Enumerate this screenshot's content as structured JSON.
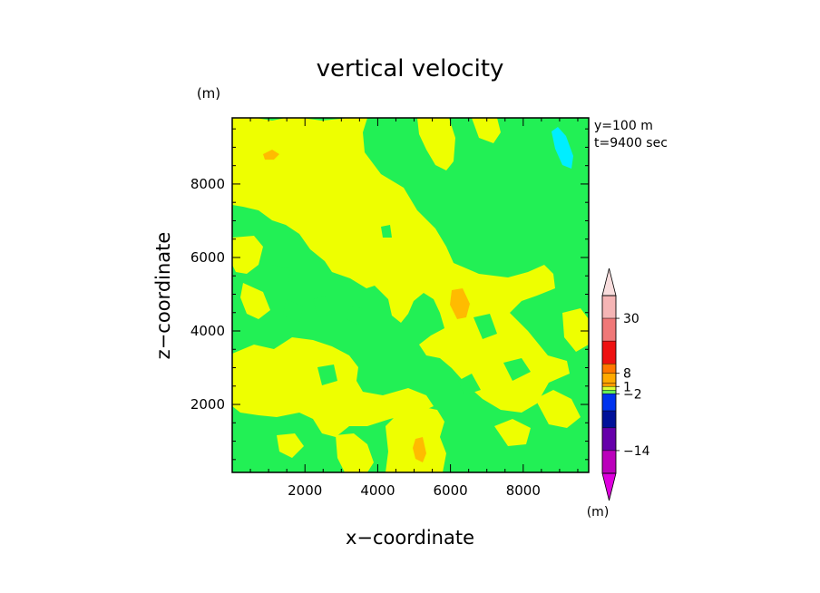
{
  "chart_data": {
    "type": "heatmap",
    "title": "vertical velocity",
    "xlabel": "x−coordinate",
    "ylabel": "z−coordinate",
    "x_unit": "(m)",
    "y_unit": "(m)",
    "annotation_lines": [
      "y=100  m",
      "t=9400  sec"
    ],
    "xlim": [
      0,
      9800
    ],
    "ylim": [
      150,
      9800
    ],
    "xticks": [
      2000,
      4000,
      6000,
      8000
    ],
    "xtick_labels": [
      "2000",
      "4000",
      "6000",
      "8000"
    ],
    "yticks": [
      2000,
      4000,
      6000,
      8000
    ],
    "ytick_labels": [
      "2000",
      "4000",
      "6000",
      "8000"
    ],
    "colorbar": {
      "unit": "(m)",
      "tick_labels": [
        {
          "label": "30",
          "band": 1
        },
        {
          "label": "8",
          "band": 4
        },
        {
          "label": "1",
          "band": 6
        },
        {
          "label": "−2",
          "band": 8
        },
        {
          "label": "−14",
          "band": 11
        }
      ],
      "band_colors": [
        "#f5b5b5",
        "#f07878",
        "#ee1111",
        "#ff7700",
        "#ffaa00",
        "#ff9900",
        "#ddff33",
        "#66ee55",
        "#0033ee",
        "#001199",
        "#6600aa",
        "#bb00bb"
      ],
      "arrow_top_color": "#f8dddd",
      "arrow_bottom_color": "#dd00dd"
    },
    "fields": {
      "background_color": "#22f055",
      "positive_color": "#eeff00",
      "strong_positive_color": "#ffbb00",
      "negative_color": "#00eeff"
    }
  }
}
